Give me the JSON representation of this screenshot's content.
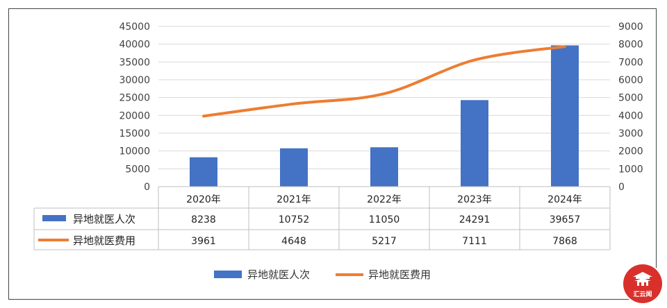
{
  "chart_data": {
    "type": "bar",
    "categories": [
      "2020年",
      "2021年",
      "2022年",
      "2023年",
      "2024年"
    ],
    "series": [
      {
        "name": "异地就医人次",
        "type": "bar",
        "axis": "left",
        "color": "#4472c4",
        "values": [
          8238,
          10752,
          11050,
          24291,
          39657
        ]
      },
      {
        "name": "异地就医费用",
        "type": "line",
        "axis": "right",
        "color": "#ed7d31",
        "values": [
          3961,
          4648,
          5217,
          7111,
          7868
        ]
      }
    ],
    "y_left": {
      "min": 0,
      "max": 45000,
      "step": 5000
    },
    "y_right": {
      "min": 0,
      "max": 9000,
      "step": 1000
    },
    "grid": true,
    "data_table": true,
    "legend_position": "bottom"
  },
  "watermark": {
    "text": "汇云闻",
    "color": "#d9302c"
  }
}
